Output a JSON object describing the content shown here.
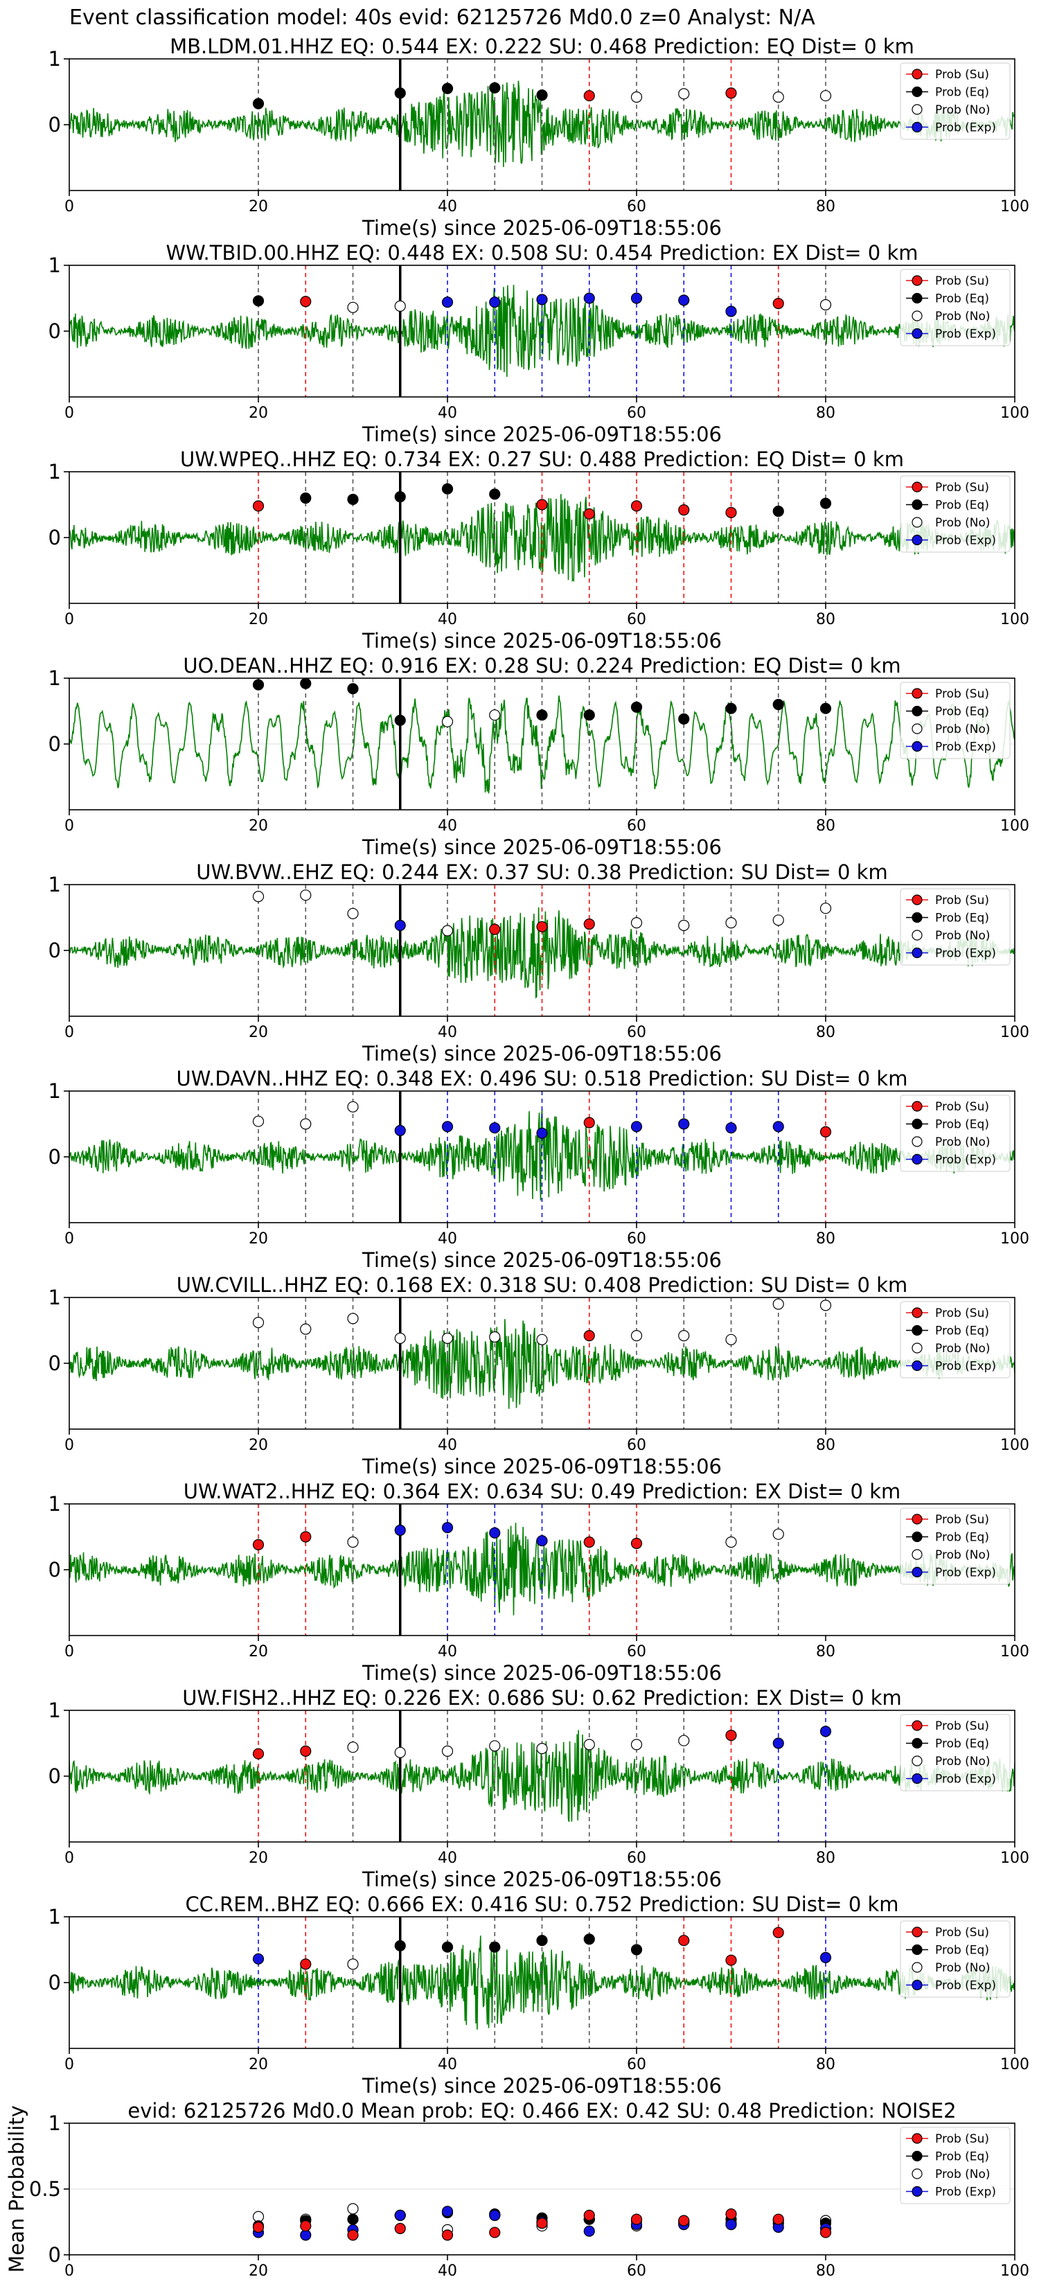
{
  "figure": {
    "title": "Event classification model: 40s evid: 62125726 Md0.0 z=0 Analyst: N/A"
  },
  "legend_labels": [
    "Prob (Su)",
    "Prob (Eq)",
    "Prob (No)",
    "Prob (Exp)"
  ],
  "colors": {
    "Su": "#ee1111",
    "Eq": "#000000",
    "No": "#ffffff",
    "Exp": "#1111dd",
    "waveform": "#008000",
    "marker_line": "#000000"
  },
  "chart_data": [
    {
      "type": "scatter",
      "title": "MB.LDM.01.HHZ   EQ: 0.544  EX: 0.222  SU: 0.468   Prediction: EQ    Dist= 0 km",
      "xlabel": "Time(s) since 2025-06-09T18:55:06",
      "xlim": [
        0,
        100
      ],
      "ylim": [
        -1,
        1
      ],
      "yticks": [
        0,
        1
      ],
      "xticks": [
        0,
        20,
        40,
        60,
        80,
        100
      ],
      "event_marker_x": 35,
      "points": [
        {
          "x": 20,
          "y": 0.32,
          "cls": "Eq"
        },
        {
          "x": 35,
          "y": 0.48,
          "cls": "Eq"
        },
        {
          "x": 40,
          "y": 0.55,
          "cls": "Eq"
        },
        {
          "x": 45,
          "y": 0.56,
          "cls": "Eq"
        },
        {
          "x": 50,
          "y": 0.45,
          "cls": "Eq"
        },
        {
          "x": 55,
          "y": 0.44,
          "cls": "Su"
        },
        {
          "x": 60,
          "y": 0.42,
          "cls": "No"
        },
        {
          "x": 65,
          "y": 0.47,
          "cls": "No"
        },
        {
          "x": 70,
          "y": 0.48,
          "cls": "Su"
        },
        {
          "x": 75,
          "y": 0.42,
          "cls": "No"
        },
        {
          "x": 80,
          "y": 0.44,
          "cls": "No"
        }
      ]
    },
    {
      "type": "scatter",
      "title": "WW.TBID.00.HHZ   EQ: 0.448  EX: 0.508  SU: 0.454   Prediction: EX    Dist= 0 km",
      "xlabel": "Time(s) since 2025-06-09T18:55:06",
      "xlim": [
        0,
        100
      ],
      "ylim": [
        -1,
        1
      ],
      "yticks": [
        0,
        1
      ],
      "xticks": [
        0,
        20,
        40,
        60,
        80,
        100
      ],
      "event_marker_x": 35,
      "points": [
        {
          "x": 20,
          "y": 0.46,
          "cls": "Eq"
        },
        {
          "x": 25,
          "y": 0.45,
          "cls": "Su"
        },
        {
          "x": 30,
          "y": 0.36,
          "cls": "No"
        },
        {
          "x": 35,
          "y": 0.38,
          "cls": "No"
        },
        {
          "x": 40,
          "y": 0.44,
          "cls": "Exp"
        },
        {
          "x": 45,
          "y": 0.44,
          "cls": "Exp"
        },
        {
          "x": 50,
          "y": 0.48,
          "cls": "Exp"
        },
        {
          "x": 55,
          "y": 0.5,
          "cls": "Exp"
        },
        {
          "x": 60,
          "y": 0.5,
          "cls": "Exp"
        },
        {
          "x": 65,
          "y": 0.47,
          "cls": "Exp"
        },
        {
          "x": 70,
          "y": 0.3,
          "cls": "Exp"
        },
        {
          "x": 75,
          "y": 0.42,
          "cls": "Su"
        },
        {
          "x": 80,
          "y": 0.4,
          "cls": "No"
        }
      ]
    },
    {
      "type": "scatter",
      "title": "UW.WPEQ..HHZ   EQ: 0.734  EX: 0.27  SU: 0.488   Prediction: EQ    Dist= 0 km",
      "xlabel": "Time(s) since 2025-06-09T18:55:06",
      "xlim": [
        0,
        100
      ],
      "ylim": [
        -1,
        1
      ],
      "yticks": [
        0,
        1
      ],
      "xticks": [
        0,
        20,
        40,
        60,
        80,
        100
      ],
      "event_marker_x": 35,
      "points": [
        {
          "x": 20,
          "y": 0.48,
          "cls": "Su"
        },
        {
          "x": 25,
          "y": 0.6,
          "cls": "Eq"
        },
        {
          "x": 30,
          "y": 0.58,
          "cls": "Eq"
        },
        {
          "x": 35,
          "y": 0.62,
          "cls": "Eq"
        },
        {
          "x": 40,
          "y": 0.74,
          "cls": "Eq"
        },
        {
          "x": 45,
          "y": 0.66,
          "cls": "Eq"
        },
        {
          "x": 50,
          "y": 0.5,
          "cls": "Su"
        },
        {
          "x": 55,
          "y": 0.36,
          "cls": "Su"
        },
        {
          "x": 60,
          "y": 0.48,
          "cls": "Su"
        },
        {
          "x": 65,
          "y": 0.42,
          "cls": "Su"
        },
        {
          "x": 70,
          "y": 0.38,
          "cls": "Su"
        },
        {
          "x": 75,
          "y": 0.4,
          "cls": "Eq"
        },
        {
          "x": 80,
          "y": 0.52,
          "cls": "Eq"
        }
      ]
    },
    {
      "type": "scatter",
      "title": "UO.DEAN..HHZ   EQ: 0.916  EX: 0.28  SU: 0.224   Prediction: EQ    Dist= 0 km",
      "xlabel": "Time(s) since 2025-06-09T18:55:06",
      "xlim": [
        0,
        100
      ],
      "ylim": [
        -1,
        1
      ],
      "yticks": [
        0,
        1
      ],
      "xticks": [
        0,
        20,
        40,
        60,
        80,
        100
      ],
      "event_marker_x": 35,
      "points": [
        {
          "x": 20,
          "y": 0.9,
          "cls": "Eq"
        },
        {
          "x": 25,
          "y": 0.92,
          "cls": "Eq"
        },
        {
          "x": 30,
          "y": 0.84,
          "cls": "Eq"
        },
        {
          "x": 35,
          "y": 0.36,
          "cls": "Eq"
        },
        {
          "x": 40,
          "y": 0.34,
          "cls": "No"
        },
        {
          "x": 45,
          "y": 0.44,
          "cls": "No"
        },
        {
          "x": 50,
          "y": 0.44,
          "cls": "Eq"
        },
        {
          "x": 55,
          "y": 0.44,
          "cls": "Eq"
        },
        {
          "x": 60,
          "y": 0.56,
          "cls": "Eq"
        },
        {
          "x": 65,
          "y": 0.38,
          "cls": "Eq"
        },
        {
          "x": 70,
          "y": 0.54,
          "cls": "Eq"
        },
        {
          "x": 75,
          "y": 0.6,
          "cls": "Eq"
        },
        {
          "x": 80,
          "y": 0.54,
          "cls": "Eq"
        }
      ]
    },
    {
      "type": "scatter",
      "title": "UW.BVW..EHZ   EQ: 0.244  EX: 0.37  SU: 0.38   Prediction: SU    Dist= 0 km",
      "xlabel": "Time(s) since 2025-06-09T18:55:06",
      "xlim": [
        0,
        100
      ],
      "ylim": [
        -1,
        1
      ],
      "yticks": [
        0,
        1
      ],
      "xticks": [
        0,
        20,
        40,
        60,
        80,
        100
      ],
      "event_marker_x": 35,
      "points": [
        {
          "x": 20,
          "y": 0.82,
          "cls": "No"
        },
        {
          "x": 25,
          "y": 0.84,
          "cls": "No"
        },
        {
          "x": 30,
          "y": 0.56,
          "cls": "No"
        },
        {
          "x": 35,
          "y": 0.38,
          "cls": "Exp"
        },
        {
          "x": 40,
          "y": 0.3,
          "cls": "No"
        },
        {
          "x": 45,
          "y": 0.32,
          "cls": "Su"
        },
        {
          "x": 50,
          "y": 0.36,
          "cls": "Su"
        },
        {
          "x": 55,
          "y": 0.4,
          "cls": "Su"
        },
        {
          "x": 60,
          "y": 0.42,
          "cls": "No"
        },
        {
          "x": 65,
          "y": 0.38,
          "cls": "No"
        },
        {
          "x": 70,
          "y": 0.42,
          "cls": "No"
        },
        {
          "x": 75,
          "y": 0.46,
          "cls": "No"
        },
        {
          "x": 80,
          "y": 0.64,
          "cls": "No"
        }
      ]
    },
    {
      "type": "scatter",
      "title": "UW.DAVN..HHZ   EQ: 0.348  EX: 0.496  SU: 0.518   Prediction: SU    Dist= 0 km",
      "xlabel": "Time(s) since 2025-06-09T18:55:06",
      "xlim": [
        0,
        100
      ],
      "ylim": [
        -1,
        1
      ],
      "yticks": [
        0,
        1
      ],
      "xticks": [
        0,
        20,
        40,
        60,
        80,
        100
      ],
      "event_marker_x": 35,
      "points": [
        {
          "x": 20,
          "y": 0.54,
          "cls": "No"
        },
        {
          "x": 25,
          "y": 0.5,
          "cls": "No"
        },
        {
          "x": 30,
          "y": 0.76,
          "cls": "No"
        },
        {
          "x": 35,
          "y": 0.4,
          "cls": "Exp"
        },
        {
          "x": 40,
          "y": 0.46,
          "cls": "Exp"
        },
        {
          "x": 45,
          "y": 0.44,
          "cls": "Exp"
        },
        {
          "x": 50,
          "y": 0.36,
          "cls": "Exp"
        },
        {
          "x": 55,
          "y": 0.52,
          "cls": "Su"
        },
        {
          "x": 60,
          "y": 0.46,
          "cls": "Exp"
        },
        {
          "x": 65,
          "y": 0.5,
          "cls": "Exp"
        },
        {
          "x": 70,
          "y": 0.44,
          "cls": "Exp"
        },
        {
          "x": 75,
          "y": 0.46,
          "cls": "Exp"
        },
        {
          "x": 80,
          "y": 0.38,
          "cls": "Su"
        }
      ]
    },
    {
      "type": "scatter",
      "title": "UW.CVILL..HHZ   EQ: 0.168  EX: 0.318  SU: 0.408   Prediction: SU    Dist= 0 km",
      "xlabel": "Time(s) since 2025-06-09T18:55:06",
      "xlim": [
        0,
        100
      ],
      "ylim": [
        -1,
        1
      ],
      "yticks": [
        0,
        1
      ],
      "xticks": [
        0,
        20,
        40,
        60,
        80,
        100
      ],
      "event_marker_x": 35,
      "points": [
        {
          "x": 20,
          "y": 0.62,
          "cls": "No"
        },
        {
          "x": 25,
          "y": 0.52,
          "cls": "No"
        },
        {
          "x": 30,
          "y": 0.68,
          "cls": "No"
        },
        {
          "x": 35,
          "y": 0.38,
          "cls": "No"
        },
        {
          "x": 40,
          "y": 0.38,
          "cls": "No"
        },
        {
          "x": 45,
          "y": 0.4,
          "cls": "No"
        },
        {
          "x": 50,
          "y": 0.36,
          "cls": "No"
        },
        {
          "x": 55,
          "y": 0.42,
          "cls": "Su"
        },
        {
          "x": 60,
          "y": 0.42,
          "cls": "No"
        },
        {
          "x": 65,
          "y": 0.42,
          "cls": "No"
        },
        {
          "x": 70,
          "y": 0.36,
          "cls": "No"
        },
        {
          "x": 75,
          "y": 0.9,
          "cls": "No"
        },
        {
          "x": 80,
          "y": 0.88,
          "cls": "No"
        }
      ]
    },
    {
      "type": "scatter",
      "title": "UW.WAT2..HHZ   EQ: 0.364  EX: 0.634  SU: 0.49   Prediction: EX    Dist= 0 km",
      "xlabel": "Time(s) since 2025-06-09T18:55:06",
      "xlim": [
        0,
        100
      ],
      "ylim": [
        -1,
        1
      ],
      "yticks": [
        0,
        1
      ],
      "xticks": [
        0,
        20,
        40,
        60,
        80,
        100
      ],
      "event_marker_x": 35,
      "points": [
        {
          "x": 20,
          "y": 0.38,
          "cls": "Su"
        },
        {
          "x": 25,
          "y": 0.5,
          "cls": "Su"
        },
        {
          "x": 30,
          "y": 0.42,
          "cls": "No"
        },
        {
          "x": 35,
          "y": 0.6,
          "cls": "Exp"
        },
        {
          "x": 40,
          "y": 0.64,
          "cls": "Exp"
        },
        {
          "x": 45,
          "y": 0.56,
          "cls": "Exp"
        },
        {
          "x": 50,
          "y": 0.44,
          "cls": "Exp"
        },
        {
          "x": 55,
          "y": 0.42,
          "cls": "Su"
        },
        {
          "x": 60,
          "y": 0.4,
          "cls": "Su"
        },
        {
          "x": 70,
          "y": 0.42,
          "cls": "No"
        },
        {
          "x": 75,
          "y": 0.54,
          "cls": "No"
        }
      ]
    },
    {
      "type": "scatter",
      "title": "UW.FISH2..HHZ   EQ: 0.226  EX: 0.686  SU: 0.62   Prediction: EX    Dist= 0 km",
      "xlabel": "Time(s) since 2025-06-09T18:55:06",
      "xlim": [
        0,
        100
      ],
      "ylim": [
        -1,
        1
      ],
      "yticks": [
        0,
        1
      ],
      "xticks": [
        0,
        20,
        40,
        60,
        80,
        100
      ],
      "event_marker_x": 35,
      "points": [
        {
          "x": 20,
          "y": 0.34,
          "cls": "Su"
        },
        {
          "x": 25,
          "y": 0.38,
          "cls": "Su"
        },
        {
          "x": 30,
          "y": 0.44,
          "cls": "No"
        },
        {
          "x": 35,
          "y": 0.36,
          "cls": "No"
        },
        {
          "x": 40,
          "y": 0.38,
          "cls": "No"
        },
        {
          "x": 45,
          "y": 0.46,
          "cls": "No"
        },
        {
          "x": 50,
          "y": 0.42,
          "cls": "No"
        },
        {
          "x": 55,
          "y": 0.48,
          "cls": "No"
        },
        {
          "x": 60,
          "y": 0.48,
          "cls": "No"
        },
        {
          "x": 65,
          "y": 0.54,
          "cls": "No"
        },
        {
          "x": 70,
          "y": 0.62,
          "cls": "Su"
        },
        {
          "x": 75,
          "y": 0.5,
          "cls": "Exp"
        },
        {
          "x": 80,
          "y": 0.68,
          "cls": "Exp"
        }
      ]
    },
    {
      "type": "scatter",
      "title": "CC.REM..BHZ   EQ: 0.666  EX: 0.416  SU: 0.752   Prediction: SU    Dist= 0 km",
      "xlabel": "Time(s) since 2025-06-09T18:55:06",
      "xlim": [
        0,
        100
      ],
      "ylim": [
        -1,
        1
      ],
      "yticks": [
        0,
        1
      ],
      "xticks": [
        0,
        20,
        40,
        60,
        80,
        100
      ],
      "event_marker_x": 35,
      "points": [
        {
          "x": 20,
          "y": 0.36,
          "cls": "Exp"
        },
        {
          "x": 25,
          "y": 0.28,
          "cls": "Su"
        },
        {
          "x": 30,
          "y": 0.28,
          "cls": "No"
        },
        {
          "x": 35,
          "y": 0.56,
          "cls": "Eq"
        },
        {
          "x": 40,
          "y": 0.54,
          "cls": "Eq"
        },
        {
          "x": 45,
          "y": 0.54,
          "cls": "Eq"
        },
        {
          "x": 50,
          "y": 0.64,
          "cls": "Eq"
        },
        {
          "x": 55,
          "y": 0.66,
          "cls": "Eq"
        },
        {
          "x": 60,
          "y": 0.5,
          "cls": "Eq"
        },
        {
          "x": 65,
          "y": 0.64,
          "cls": "Su"
        },
        {
          "x": 70,
          "y": 0.34,
          "cls": "Su"
        },
        {
          "x": 75,
          "y": 0.76,
          "cls": "Su"
        },
        {
          "x": 80,
          "y": 0.38,
          "cls": "Exp"
        }
      ]
    },
    {
      "type": "scatter",
      "title": "evid: 62125726  Md0.0   Mean prob:   EQ: 0.466  EX: 0.42  SU: 0.48   Prediction: NOISE2",
      "xlabel": "",
      "ylabel": "Mean Probability",
      "xlim": [
        0,
        100
      ],
      "ylim": [
        0,
        1
      ],
      "yticks": [
        0,
        0.5,
        1
      ],
      "xticks": [
        0,
        20,
        40,
        60,
        80,
        100
      ],
      "mean": true,
      "series": [
        {
          "cls": "No",
          "values": [
            0.29,
            0.27,
            0.35,
            0.3,
            0.19,
            0.3,
            0.22,
            0.27,
            0.22,
            0.24,
            0.24,
            0.24,
            0.26
          ]
        },
        {
          "cls": "Eq",
          "values": [
            0.22,
            0.26,
            0.27,
            0.3,
            0.32,
            0.31,
            0.28,
            0.27,
            0.26,
            0.25,
            0.27,
            0.26,
            0.24
          ]
        },
        {
          "cls": "Exp",
          "values": [
            0.17,
            0.15,
            0.19,
            0.3,
            0.33,
            0.3,
            0.25,
            0.18,
            0.23,
            0.23,
            0.23,
            0.21,
            0.2
          ]
        },
        {
          "cls": "Su",
          "values": [
            0.21,
            0.22,
            0.15,
            0.2,
            0.15,
            0.17,
            0.24,
            0.3,
            0.27,
            0.26,
            0.31,
            0.27,
            0.17
          ]
        }
      ],
      "x": [
        20,
        25,
        30,
        35,
        40,
        45,
        50,
        55,
        60,
        65,
        70,
        75,
        80
      ]
    }
  ]
}
